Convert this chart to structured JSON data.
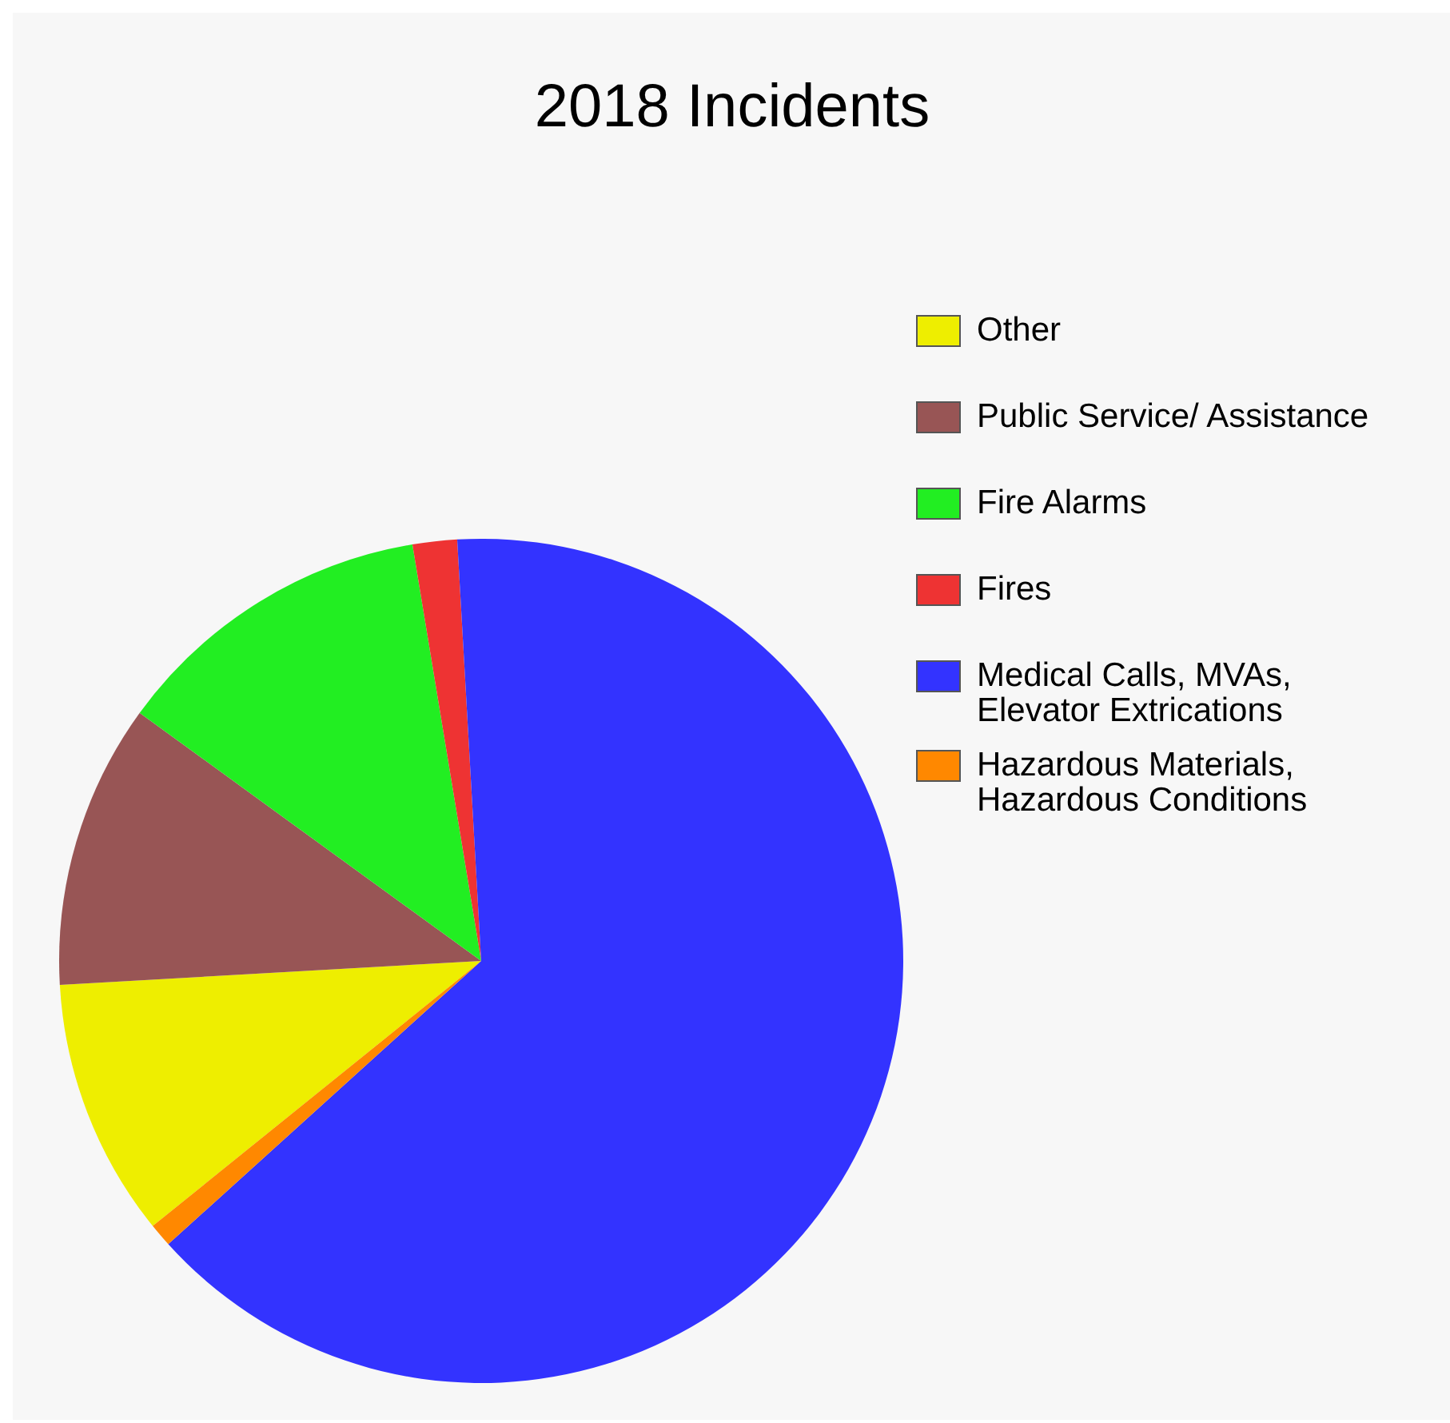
{
  "chart_data": {
    "type": "pie",
    "title": "2018 Incidents",
    "categories": [
      "Other",
      "Public Service/ Assistance",
      "Fire Alarms",
      "Fires",
      "Medical Calls, MVAs,\nElevator Extrications",
      "Hazardous Materials,\nHazardous Conditions"
    ],
    "values": [
      9.9,
      10.9,
      12.4,
      1.7,
      64.2,
      0.9
    ],
    "colors": [
      "#eeee00",
      "#985555",
      "#22ee22",
      "#ee3333",
      "#3333ff",
      "#ff8800"
    ],
    "legend": "right"
  }
}
